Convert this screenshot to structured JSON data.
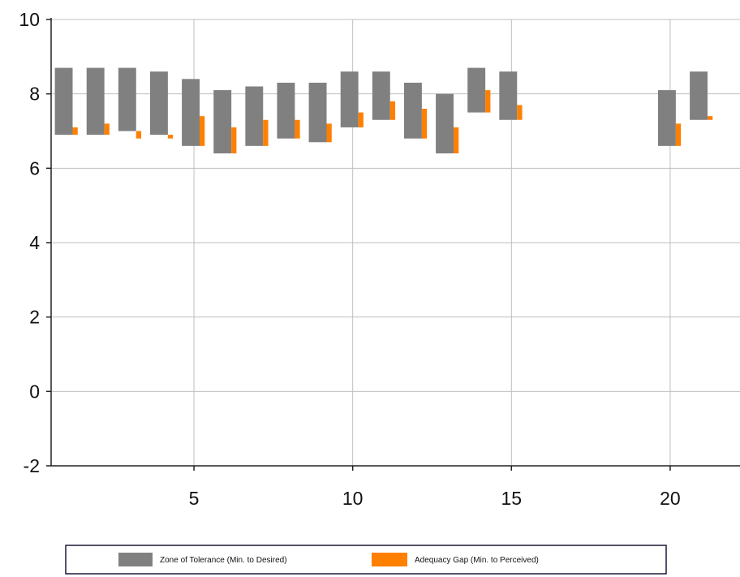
{
  "chart_data": {
    "type": "bar",
    "subtype": "floating-range",
    "ylim": [
      -2,
      10
    ],
    "xlim": [
      0.5,
      22.2
    ],
    "yticks": [
      -2,
      0,
      2,
      4,
      6,
      8,
      10
    ],
    "xticks": [
      5,
      10,
      15,
      20
    ],
    "grid": true,
    "legend_position": "bottom",
    "colors": {
      "zone": "#808080",
      "gap": "#ff8000",
      "grid": "#bfbfbf",
      "axis": "#222222"
    },
    "series": [
      {
        "name": "Zone of Tolerance (Min. to Desired)",
        "color": "#808080",
        "points": [
          {
            "x": 1,
            "low": 6.9,
            "high": 8.7
          },
          {
            "x": 2,
            "low": 6.9,
            "high": 8.7
          },
          {
            "x": 3,
            "low": 7.0,
            "high": 8.7
          },
          {
            "x": 4,
            "low": 6.9,
            "high": 8.6
          },
          {
            "x": 5,
            "low": 6.6,
            "high": 8.4
          },
          {
            "x": 6,
            "low": 6.4,
            "high": 8.1
          },
          {
            "x": 7,
            "low": 6.6,
            "high": 8.2
          },
          {
            "x": 8,
            "low": 6.8,
            "high": 8.3
          },
          {
            "x": 9,
            "low": 6.7,
            "high": 8.3
          },
          {
            "x": 10,
            "low": 7.1,
            "high": 8.6
          },
          {
            "x": 11,
            "low": 7.3,
            "high": 8.6
          },
          {
            "x": 12,
            "low": 6.8,
            "high": 8.3
          },
          {
            "x": 13,
            "low": 6.4,
            "high": 8.0
          },
          {
            "x": 14,
            "low": 7.5,
            "high": 8.7
          },
          {
            "x": 15,
            "low": 7.3,
            "high": 8.6
          },
          {
            "x": 20,
            "low": 6.6,
            "high": 8.1
          },
          {
            "x": 21,
            "low": 7.3,
            "high": 8.6
          }
        ]
      },
      {
        "name": "Adequacy Gap (Min. to Perceived)",
        "color": "#ff8000",
        "points": [
          {
            "x": 1,
            "low": 6.9,
            "high": 7.1
          },
          {
            "x": 2,
            "low": 6.9,
            "high": 7.2
          },
          {
            "x": 3,
            "low": 6.8,
            "high": 7.0
          },
          {
            "x": 4,
            "low": 6.8,
            "high": 6.9
          },
          {
            "x": 5,
            "low": 6.6,
            "high": 7.4
          },
          {
            "x": 6,
            "low": 6.4,
            "high": 7.1
          },
          {
            "x": 7,
            "low": 6.6,
            "high": 7.3
          },
          {
            "x": 8,
            "low": 6.8,
            "high": 7.3
          },
          {
            "x": 9,
            "low": 6.7,
            "high": 7.2
          },
          {
            "x": 10,
            "low": 7.1,
            "high": 7.5
          },
          {
            "x": 11,
            "low": 7.3,
            "high": 7.8
          },
          {
            "x": 12,
            "low": 6.8,
            "high": 7.6
          },
          {
            "x": 13,
            "low": 6.4,
            "high": 7.1
          },
          {
            "x": 14,
            "low": 7.5,
            "high": 8.1
          },
          {
            "x": 15,
            "low": 7.3,
            "high": 7.7
          },
          {
            "x": 20,
            "low": 6.6,
            "high": 7.2
          },
          {
            "x": 21,
            "low": 7.3,
            "high": 7.4
          }
        ]
      }
    ],
    "legend": [
      {
        "label": "Zone of Tolerance (Min. to Desired)",
        "color": "#808080"
      },
      {
        "label": "Adequacy Gap (Min. to Perceived)",
        "color": "#ff8000"
      }
    ]
  }
}
